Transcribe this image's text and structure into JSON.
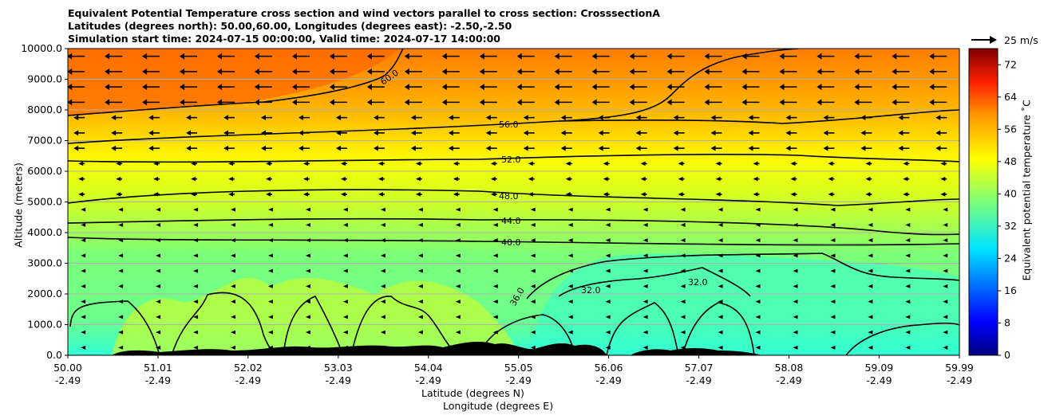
{
  "title": {
    "line1": "Equivalent Potential Temperature cross section and wind vectors parallel to cross section: CrosssectionA",
    "line2": "Latitudes (degrees north): 50.00,60.00, Longitudes (degrees east): -2.50,-2.50",
    "line3": "Simulation start time: 2024-07-15 00:00:00, Valid time: 2024-07-17 14:00:00"
  },
  "chart_data": {
    "type": "heatmap",
    "subtype": "filled contour cross-section with wind vectors",
    "xlabel_lat": "Latitude (degrees N)",
    "xlabel_lon": "Longitude (degrees E)",
    "ylabel": "Altitude (meters)",
    "x_ticks_lat": [
      "50.00",
      "51.01",
      "52.02",
      "53.03",
      "54.04",
      "55.05",
      "56.06",
      "57.07",
      "58.08",
      "59.09",
      "59.99"
    ],
    "x_ticks_lon": [
      "-2.49",
      "-2.49",
      "-2.49",
      "-2.49",
      "-2.49",
      "-2.49",
      "-2.49",
      "-2.49",
      "-2.49",
      "-2.49",
      "-2.49"
    ],
    "xlim": [
      50.0,
      59.99
    ],
    "y_ticks": [
      "0.0",
      "1000.0",
      "2000.0",
      "3000.0",
      "4000.0",
      "5000.0",
      "6000.0",
      "7000.0",
      "8000.0",
      "9000.0",
      "10000.0"
    ],
    "ylim": [
      0,
      10000
    ],
    "grid": "horizontal",
    "colorbar": {
      "label": "Equivalent potential temperature ˚C",
      "ticks": [
        "0",
        "8",
        "16",
        "24",
        "32",
        "40",
        "48",
        "56",
        "64",
        "72"
      ],
      "range": [
        0,
        76
      ]
    },
    "contours": [
      {
        "label": "32.0",
        "altitude_m": 2300,
        "lat": 56.2
      },
      {
        "label": "36.0",
        "altitude_m": 3000,
        "lat": 55.0
      },
      {
        "label": "40.0",
        "altitude_m": 3750,
        "lat": 55.0
      },
      {
        "label": "44.0",
        "altitude_m": 4350,
        "lat": 55.0
      },
      {
        "label": "48.0",
        "altitude_m": 5100,
        "lat": 55.0
      },
      {
        "label": "52.0",
        "altitude_m": 6350,
        "lat": 55.0
      },
      {
        "label": "56.0",
        "altitude_m": 7500,
        "lat": 55.0
      },
      {
        "label": "60.0",
        "altitude_m": 9150,
        "lat": 53.7
      }
    ],
    "contour_labels_visible": [
      "32.0",
      "36.0",
      "40.0",
      "44.0",
      "48.0",
      "52.0",
      "56.0",
      "60.0"
    ],
    "wind_reference": {
      "label": "25 m/s",
      "speed": 25
    },
    "wind_direction": "left (parallel to cross section, northward-to-southward)",
    "terrain": "black terrain silhouette along the bottom"
  }
}
